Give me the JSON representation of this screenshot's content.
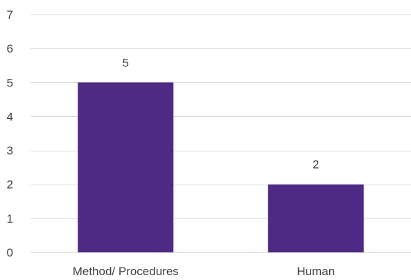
{
  "chart_data": {
    "type": "bar",
    "categories": [
      "Method/ Procedures",
      "Human"
    ],
    "values": [
      5,
      2
    ],
    "title": "",
    "xlabel": "",
    "ylabel": "",
    "ylim": [
      0,
      7
    ],
    "yticks": [
      0,
      1,
      2,
      3,
      4,
      5,
      6,
      7
    ],
    "grid": true,
    "data_labels": true,
    "bar_color": "#4e2a84",
    "gridline_color": "#d9d9d9",
    "text_color": "#404040"
  }
}
